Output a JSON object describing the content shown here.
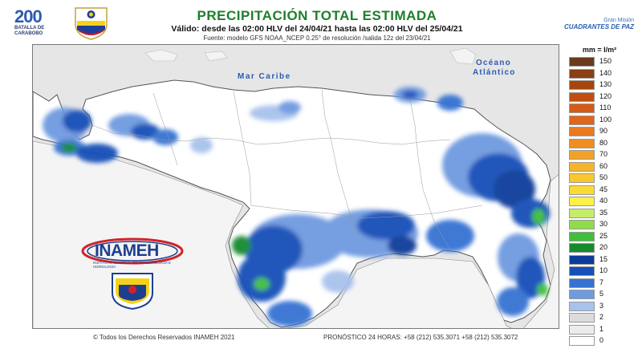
{
  "header": {
    "title": "PRECIPITACIÓN TOTAL ESTIMADA",
    "subtitle": "Válido: desde las 02:00 HLV del 24/04/21 hasta las 02:00 HLV del 25/04/21",
    "source": "Fuente: modelo GFS NOAA_NCEP 0.25° de resolución /salida 12z del 23/04/21"
  },
  "logos": {
    "bicentenario": {
      "number": "200",
      "line1": "BATALLA DE",
      "line2": "CARABOBO"
    },
    "gran_mision": {
      "line1": "Gran Misión",
      "line2": "CUADRANTES DE PAZ"
    },
    "inameh": {
      "name": "INAMEH",
      "tagline": "INSTITUTO NACIONAL DE METEOROLOGÍA E HIDROLOGÍA"
    }
  },
  "map": {
    "sea_label": "Mar Caribe",
    "ocean_label_1": "Océano",
    "ocean_label_2": "Atlántico",
    "colors": {
      "land": "#ffffff",
      "sea": "#e6e6e6",
      "border": "#555555"
    }
  },
  "legend": {
    "title": "mm = l/m²",
    "items": [
      {
        "label": "150",
        "color": "#6b3a1d"
      },
      {
        "label": "140",
        "color": "#8a3f14"
      },
      {
        "label": "130",
        "color": "#a8450f"
      },
      {
        "label": "120",
        "color": "#c04d12"
      },
      {
        "label": "110",
        "color": "#d55a14"
      },
      {
        "label": "100",
        "color": "#e26418"
      },
      {
        "label": "90",
        "color": "#ea7a1e"
      },
      {
        "label": "80",
        "color": "#ef8e22"
      },
      {
        "label": "70",
        "color": "#f2a226"
      },
      {
        "label": "60",
        "color": "#f5b52a"
      },
      {
        "label": "50",
        "color": "#f8c82e"
      },
      {
        "label": "45",
        "color": "#fbdb33"
      },
      {
        "label": "40",
        "color": "#fdf04a"
      },
      {
        "label": "35",
        "color": "#c6ec6a"
      },
      {
        "label": "30",
        "color": "#8fdc4a"
      },
      {
        "label": "25",
        "color": "#3fbf3a"
      },
      {
        "label": "20",
        "color": "#168a2d"
      },
      {
        "label": "15",
        "color": "#0c3c9a"
      },
      {
        "label": "10",
        "color": "#1450b8"
      },
      {
        "label": "7",
        "color": "#3672d2"
      },
      {
        "label": "5",
        "color": "#6e9ae0"
      },
      {
        "label": "3",
        "color": "#a8c2ec"
      },
      {
        "label": "2",
        "color": "#dcdcdc"
      },
      {
        "label": "1",
        "color": "#ececec"
      },
      {
        "label": "0",
        "color": "#ffffff"
      }
    ]
  },
  "footer": {
    "copyright": "© Todos los Derechos Reservados INAMEH 2021",
    "contact": "PRONÓSTICO 24 HORAS: +58 (212) 535.3071 +58 (212) 535.3072"
  }
}
